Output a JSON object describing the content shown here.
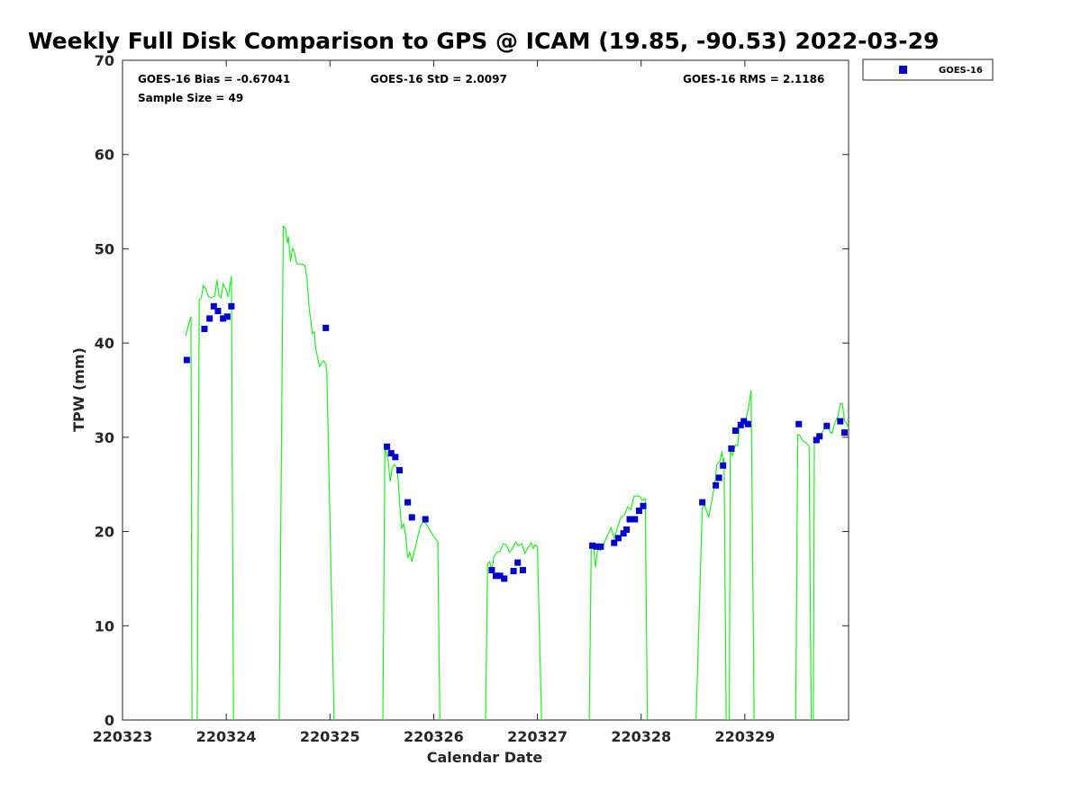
{
  "chart_data": {
    "type": "scatter",
    "title": "Weekly Full Disk Comparison to GPS @ ICAM (19.85, -90.53) 2022-03-29",
    "xlabel": "Calendar Date",
    "ylabel": "TPW (mm)",
    "xlim": [
      0,
      7
    ],
    "ylim": [
      0,
      70
    ],
    "x_ticks": [
      {
        "value": 0,
        "label": "220323"
      },
      {
        "value": 1,
        "label": "220324"
      },
      {
        "value": 2,
        "label": "220325"
      },
      {
        "value": 3,
        "label": "220326"
      },
      {
        "value": 4,
        "label": "220327"
      },
      {
        "value": 5,
        "label": "220328"
      },
      {
        "value": 6,
        "label": "220329"
      }
    ],
    "y_ticks": [
      0,
      10,
      20,
      30,
      40,
      50,
      60,
      70
    ],
    "y_tick_labels": [
      "0",
      "10",
      "20",
      "30",
      "40",
      "50",
      "60",
      "70"
    ],
    "stats": {
      "bias": "GOES-16 Bias = -0.67041",
      "std": "GOES-16 StD = 2.0097",
      "rms": "GOES-16 RMS = 2.1186",
      "sample": "Sample Size = 49"
    },
    "legend": {
      "position": "top-right-outside",
      "label": "GOES-16"
    },
    "colors": {
      "goes": "#0000cc",
      "gps": "#22ee22"
    },
    "series": [
      {
        "name": "GOES-16",
        "marker": "square",
        "points": [
          [
            0.62,
            38.2
          ],
          [
            0.79,
            41.5
          ],
          [
            0.84,
            42.6
          ],
          [
            0.88,
            43.9
          ],
          [
            0.92,
            43.4
          ],
          [
            0.97,
            42.6
          ],
          [
            1.01,
            42.8
          ],
          [
            1.05,
            43.9
          ],
          [
            1.96,
            41.6
          ],
          [
            2.55,
            29.0
          ],
          [
            2.59,
            28.3
          ],
          [
            2.63,
            27.9
          ],
          [
            2.67,
            26.5
          ],
          [
            2.75,
            23.1
          ],
          [
            2.79,
            21.5
          ],
          [
            2.92,
            21.3
          ],
          [
            3.56,
            15.9
          ],
          [
            3.6,
            15.3
          ],
          [
            3.64,
            15.3
          ],
          [
            3.68,
            15.0
          ],
          [
            3.77,
            15.8
          ],
          [
            3.81,
            16.7
          ],
          [
            3.86,
            15.9
          ],
          [
            4.53,
            18.5
          ],
          [
            4.57,
            18.4
          ],
          [
            4.61,
            18.4
          ],
          [
            4.74,
            18.8
          ],
          [
            4.78,
            19.3
          ],
          [
            4.83,
            19.8
          ],
          [
            4.86,
            20.2
          ],
          [
            4.89,
            21.3
          ],
          [
            4.94,
            21.3
          ],
          [
            4.98,
            22.2
          ],
          [
            5.02,
            22.7
          ],
          [
            5.59,
            23.1
          ],
          [
            5.72,
            24.9
          ],
          [
            5.75,
            25.7
          ],
          [
            5.79,
            27.0
          ],
          [
            5.87,
            28.8
          ],
          [
            5.91,
            30.7
          ],
          [
            5.96,
            31.3
          ],
          [
            5.99,
            31.7
          ],
          [
            6.03,
            31.4
          ],
          [
            6.52,
            31.4
          ],
          [
            6.69,
            29.7
          ],
          [
            6.72,
            30.1
          ],
          [
            6.79,
            31.2
          ],
          [
            6.92,
            31.7
          ],
          [
            6.96,
            30.5
          ]
        ]
      },
      {
        "name": "GPS",
        "line": true,
        "segments": [
          [
            [
              0.61,
              40.8
            ],
            [
              0.64,
              42.1
            ],
            [
              0.66,
              42.8
            ],
            [
              0.67,
              0
            ]
          ],
          [
            [
              0.72,
              0
            ],
            [
              0.74,
              44.6
            ],
            [
              0.76,
              44.8
            ],
            [
              0.78,
              46.1
            ],
            [
              0.8,
              45.8
            ],
            [
              0.83,
              44.9
            ],
            [
              0.86,
              44.8
            ],
            [
              0.89,
              45.0
            ],
            [
              0.91,
              46.7
            ],
            [
              0.93,
              45.0
            ],
            [
              0.95,
              44.8
            ],
            [
              0.97,
              46.3
            ],
            [
              1.0,
              45.6
            ],
            [
              1.02,
              44.9
            ],
            [
              1.05,
              47.1
            ],
            [
              1.07,
              0
            ]
          ],
          [
            [
              1.51,
              0
            ],
            [
              1.55,
              52.4
            ],
            [
              1.57,
              52.2
            ],
            [
              1.59,
              50.6
            ],
            [
              1.6,
              51.3
            ],
            [
              1.62,
              48.6
            ],
            [
              1.64,
              50.1
            ],
            [
              1.66,
              49.5
            ],
            [
              1.68,
              48.4
            ],
            [
              1.72,
              48.4
            ],
            [
              1.76,
              48.2
            ],
            [
              1.78,
              46.6
            ],
            [
              1.8,
              43.6
            ],
            [
              1.82,
              42.0
            ],
            [
              1.83,
              41.0
            ],
            [
              1.85,
              41.2
            ],
            [
              1.86,
              39.6
            ],
            [
              1.88,
              38.5
            ],
            [
              1.9,
              37.5
            ],
            [
              1.92,
              37.9
            ],
            [
              1.94,
              38.1
            ],
            [
              1.96,
              37.8
            ],
            [
              1.97,
              37.0
            ],
            [
              2.04,
              0
            ]
          ],
          [
            [
              2.51,
              0
            ],
            [
              2.53,
              29.1
            ],
            [
              2.56,
              27.6
            ],
            [
              2.58,
              25.3
            ],
            [
              2.6,
              26.8
            ],
            [
              2.62,
              27.1
            ],
            [
              2.65,
              26.7
            ],
            [
              2.67,
              23.4
            ],
            [
              2.69,
              20.3
            ],
            [
              2.71,
              20.8
            ],
            [
              2.73,
              19.6
            ],
            [
              2.75,
              17.2
            ],
            [
              2.77,
              17.8
            ],
            [
              2.79,
              16.8
            ],
            [
              2.83,
              18.7
            ],
            [
              2.87,
              20.5
            ],
            [
              2.9,
              21.1
            ],
            [
              2.93,
              20.8
            ],
            [
              2.96,
              20.2
            ],
            [
              3.0,
              19.5
            ],
            [
              3.04,
              18.9
            ],
            [
              3.06,
              0
            ]
          ],
          [
            [
              3.5,
              0
            ],
            [
              3.52,
              16.5
            ],
            [
              3.54,
              16.8
            ],
            [
              3.56,
              15.9
            ],
            [
              3.58,
              17.3
            ],
            [
              3.61,
              17.8
            ],
            [
              3.64,
              17.9
            ],
            [
              3.67,
              18.7
            ],
            [
              3.7,
              18.6
            ],
            [
              3.73,
              17.8
            ],
            [
              3.76,
              18.2
            ],
            [
              3.79,
              18.9
            ],
            [
              3.82,
              18.5
            ],
            [
              3.85,
              18.7
            ],
            [
              3.88,
              17.7
            ],
            [
              3.91,
              18.3
            ],
            [
              3.94,
              18.8
            ],
            [
              3.96,
              18.2
            ],
            [
              3.98,
              18.6
            ],
            [
              4.0,
              18.4
            ],
            [
              4.04,
              0
            ]
          ],
          [
            [
              4.5,
              0
            ],
            [
              4.52,
              18.7
            ],
            [
              4.54,
              18.6
            ],
            [
              4.56,
              16.2
            ],
            [
              4.58,
              18.1
            ],
            [
              4.61,
              18.0
            ],
            [
              4.64,
              18.7
            ],
            [
              4.68,
              19.7
            ],
            [
              4.71,
              20.4
            ],
            [
              4.74,
              19.3
            ],
            [
              4.77,
              20.3
            ],
            [
              4.8,
              21.4
            ],
            [
              4.84,
              21.8
            ],
            [
              4.87,
              22.6
            ],
            [
              4.9,
              22.3
            ],
            [
              4.93,
              23.7
            ],
            [
              4.96,
              23.8
            ],
            [
              4.99,
              23.7
            ],
            [
              5.01,
              23.3
            ],
            [
              5.04,
              23.5
            ],
            [
              5.06,
              0
            ]
          ],
          [
            [
              5.53,
              0
            ],
            [
              5.57,
              15.0
            ],
            [
              5.59,
              22.5
            ],
            [
              5.61,
              22.8
            ],
            [
              5.63,
              22.2
            ],
            [
              5.65,
              21.5
            ],
            [
              5.68,
              23.2
            ],
            [
              5.71,
              25.0
            ],
            [
              5.73,
              27.1
            ],
            [
              5.76,
              27.5
            ],
            [
              5.78,
              28.5
            ],
            [
              5.79,
              27.2
            ],
            [
              5.8,
              27.8
            ],
            [
              5.82,
              0
            ]
          ],
          [
            [
              5.85,
              0
            ],
            [
              5.86,
              29.0
            ],
            [
              5.88,
              28.0
            ],
            [
              5.91,
              29.2
            ],
            [
              5.93,
              29.1
            ],
            [
              5.95,
              31.2
            ],
            [
              5.98,
              31.3
            ],
            [
              6.01,
              31.9
            ],
            [
              6.04,
              33.5
            ],
            [
              6.06,
              35.0
            ],
            [
              6.09,
              0
            ]
          ],
          [
            [
              6.49,
              0
            ],
            [
              6.51,
              30.3
            ],
            [
              6.53,
              30.2
            ],
            [
              6.56,
              29.6
            ],
            [
              6.59,
              29.4
            ],
            [
              6.62,
              29.0
            ],
            [
              6.64,
              0
            ]
          ],
          [
            [
              6.66,
              0
            ],
            [
              6.67,
              30.0
            ],
            [
              6.7,
              29.9
            ],
            [
              6.73,
              30.2
            ],
            [
              6.76,
              30.8
            ],
            [
              6.79,
              31.5
            ],
            [
              6.82,
              30.6
            ],
            [
              6.84,
              30.4
            ],
            [
              6.87,
              31.6
            ],
            [
              6.9,
              32.3
            ],
            [
              6.92,
              33.6
            ],
            [
              6.94,
              33.6
            ],
            [
              6.96,
              31.8
            ],
            [
              6.98,
              31.5
            ],
            [
              7.0,
              31.0
            ]
          ]
        ]
      }
    ]
  }
}
